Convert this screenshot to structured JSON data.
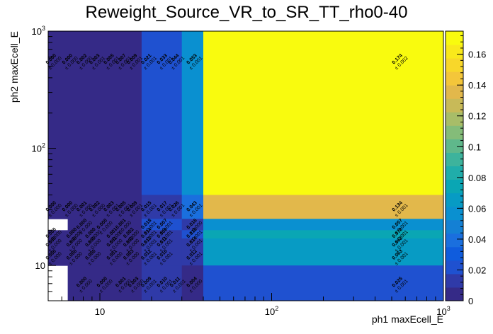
{
  "chart_data": {
    "type": "heatmap",
    "title": "Reweight_Source_VR_to_SR_TT_rho0-40",
    "xlabel": "ph1 maxEcell_E",
    "ylabel": "ph2 maxEcell_E",
    "x_scale": "log",
    "y_scale": "log",
    "xlim": [
      5,
      1000
    ],
    "ylim": [
      5,
      1000
    ],
    "x_ticks": [
      {
        "value": 10,
        "base": "10",
        "exp": ""
      },
      {
        "value": 100,
        "base": "10",
        "exp": "2"
      },
      {
        "value": 1000,
        "base": "10",
        "exp": "3"
      }
    ],
    "y_ticks": [
      {
        "value": 10,
        "base": "10",
        "exp": ""
      },
      {
        "value": 100,
        "base": "10",
        "exp": "2"
      },
      {
        "value": 1000,
        "base": "10",
        "exp": "3"
      }
    ],
    "colorbar": {
      "range": [
        0,
        0.175
      ],
      "ticks": [
        "0",
        "0.02",
        "0.04",
        "0.06",
        "0.08",
        "0.1",
        "0.12",
        "0.14",
        "0.16"
      ],
      "tick_values": [
        0,
        0.02,
        0.04,
        0.06,
        0.08,
        0.1,
        0.12,
        0.14,
        0.16
      ],
      "palette": [
        "#352a87",
        "#2f3aa8",
        "#1f51d0",
        "#0f5cdd",
        "#1a6fde",
        "#1480d4",
        "#0a90d0",
        "#079bc4",
        "#0aa6b4",
        "#20adaa",
        "#3db39c",
        "#5fb88b",
        "#84bc79",
        "#a8bd68",
        "#c8ba58",
        "#e2b84b",
        "#f4c63a",
        "#f8d72a",
        "#f9e91b",
        "#f9fb0e"
      ]
    },
    "cells": [
      {
        "x": [
          5,
          17.5
        ],
        "y": [
          40,
          1000
        ],
        "value": 0.0
      },
      {
        "x": [
          17.5,
          30
        ],
        "y": [
          40,
          1000
        ],
        "value": 0.021
      },
      {
        "x": [
          30,
          40
        ],
        "y": [
          40,
          1000
        ],
        "value": 0.053
      },
      {
        "x": [
          40,
          1000
        ],
        "y": [
          40,
          1000
        ],
        "value": 0.174
      },
      {
        "x": [
          5,
          17.5
        ],
        "y": [
          25,
          40
        ],
        "value": 0.0
      },
      {
        "x": [
          17.5,
          30
        ],
        "y": [
          25,
          40
        ],
        "value": 0.017
      },
      {
        "x": [
          30,
          40
        ],
        "y": [
          25,
          40
        ],
        "value": 0.043
      },
      {
        "x": [
          40,
          1000
        ],
        "y": [
          25,
          40
        ],
        "value": 0.134
      },
      {
        "x": [
          5,
          6.5
        ],
        "y": [
          20,
          25
        ],
        "value": null
      },
      {
        "x": [
          6.5,
          17.5
        ],
        "y": [
          20,
          25
        ],
        "value": 0.0
      },
      {
        "x": [
          17.5,
          30
        ],
        "y": [
          20,
          25
        ],
        "value": 0.018
      },
      {
        "x": [
          30,
          40
        ],
        "y": [
          20,
          25
        ],
        "value": 0.016
      },
      {
        "x": [
          40,
          1000
        ],
        "y": [
          20,
          25
        ],
        "value": 0.057
      },
      {
        "x": [
          5,
          17.5
        ],
        "y": [
          17,
          20
        ],
        "value": 0.0
      },
      {
        "x": [
          17.5,
          30
        ],
        "y": [
          17,
          20
        ],
        "value": 0.014
      },
      {
        "x": [
          30,
          40
        ],
        "y": [
          17,
          20
        ],
        "value": 0.018
      },
      {
        "x": [
          40,
          1000
        ],
        "y": [
          17,
          20
        ],
        "value": 0.078
      },
      {
        "x": [
          5,
          17.5
        ],
        "y": [
          14,
          17
        ],
        "value": 0.0
      },
      {
        "x": [
          17.5,
          30
        ],
        "y": [
          14,
          17
        ],
        "value": 0.013
      },
      {
        "x": [
          30,
          40
        ],
        "y": [
          14,
          17
        ],
        "value": 0.014
      },
      {
        "x": [
          40,
          1000
        ],
        "y": [
          14,
          17
        ],
        "value": 0.063
      },
      {
        "x": [
          5,
          17.5
        ],
        "y": [
          10,
          14
        ],
        "value": 0.0
      },
      {
        "x": [
          17.5,
          30
        ],
        "y": [
          10,
          14
        ],
        "value": 0.012
      },
      {
        "x": [
          30,
          40
        ],
        "y": [
          10,
          14
        ],
        "value": 0.012
      },
      {
        "x": [
          40,
          1000
        ],
        "y": [
          10,
          14
        ],
        "value": 0.063
      },
      {
        "x": [
          5,
          6.5
        ],
        "y": [
          5,
          10
        ],
        "value": null
      },
      {
        "x": [
          6.5,
          17.5
        ],
        "y": [
          5,
          10
        ],
        "value": 0.0
      },
      {
        "x": [
          17.5,
          30
        ],
        "y": [
          5,
          10
        ],
        "value": 0.009
      },
      {
        "x": [
          30,
          40
        ],
        "y": [
          5,
          10
        ],
        "value": 0.004
      },
      {
        "x": [
          40,
          1000
        ],
        "y": [
          5,
          10
        ],
        "value": 0.025
      }
    ],
    "labels": [
      {
        "x": 5.3,
        "y": 560,
        "value": "0.000",
        "error": "± 0.000"
      },
      {
        "x": 6.6,
        "y": 560,
        "value": "0.000",
        "error": "± 0.000"
      },
      {
        "x": 8.0,
        "y": 560,
        "value": "0.002",
        "error": "± 0.000"
      },
      {
        "x": 9.5,
        "y": 560,
        "value": "0.003",
        "error": "± 0.001"
      },
      {
        "x": 11.5,
        "y": 560,
        "value": "0.005",
        "error": "± 0.001"
      },
      {
        "x": 13.5,
        "y": 560,
        "value": "0.007",
        "error": "± 0.001"
      },
      {
        "x": 15.7,
        "y": 560,
        "value": "0.009",
        "error": "± 0.001"
      },
      {
        "x": 19.0,
        "y": 560,
        "value": "0.021",
        "error": "± 0.001"
      },
      {
        "x": 23.5,
        "y": 560,
        "value": "0.033",
        "error": "± 0.001"
      },
      {
        "x": 27.5,
        "y": 560,
        "value": "0.044",
        "error": "± 0.001"
      },
      {
        "x": 35.0,
        "y": 560,
        "value": "0.053",
        "error": "± 0.001"
      },
      {
        "x": 550,
        "y": 560,
        "value": "0.174",
        "error": "± 0.002"
      },
      {
        "x": 5.3,
        "y": 31,
        "value": "0.000",
        "error": "± 0.000"
      },
      {
        "x": 6.6,
        "y": 31,
        "value": "0.000",
        "error": "± 0.000"
      },
      {
        "x": 8.0,
        "y": 31,
        "value": "0.001",
        "error": "± 0.000"
      },
      {
        "x": 9.5,
        "y": 31,
        "value": "0.002",
        "error": "± 0.000"
      },
      {
        "x": 11.5,
        "y": 31,
        "value": "0.003",
        "error": "± 0.001"
      },
      {
        "x": 13.5,
        "y": 31,
        "value": "0.005",
        "error": "± 0.001"
      },
      {
        "x": 15.7,
        "y": 31,
        "value": "0.009",
        "error": "± 0.001"
      },
      {
        "x": 19.0,
        "y": 31,
        "value": "0.015",
        "error": "± 0.001"
      },
      {
        "x": 23.5,
        "y": 31,
        "value": "0.017",
        "error": "± 0.001"
      },
      {
        "x": 27.5,
        "y": 31,
        "value": "0.026",
        "error": "± 0.001"
      },
      {
        "x": 35.0,
        "y": 31,
        "value": "0.043",
        "error": "± 0.001"
      },
      {
        "x": 550,
        "y": 31,
        "value": "0.134",
        "error": "± 0.001"
      },
      {
        "x": 8.0,
        "y": 22,
        "value": "0.000",
        "error": "± 0.000"
      },
      {
        "x": 10.5,
        "y": 22,
        "value": "0.000",
        "error": "± 0.000"
      },
      {
        "x": 13.5,
        "y": 22,
        "value": "0.001",
        "error": "± 0.000"
      },
      {
        "x": 19.0,
        "y": 22,
        "value": "0.018",
        "error": "± 0.001"
      },
      {
        "x": 23.5,
        "y": 22,
        "value": "0.007",
        "error": "± 0.001"
      },
      {
        "x": 35.0,
        "y": 22,
        "value": "0.016",
        "error": "± 0.000"
      },
      {
        "x": 550,
        "y": 22,
        "value": "0.057",
        "error": "± 0.001"
      },
      {
        "x": 5.3,
        "y": 18.4,
        "value": "0.000",
        "error": "± 0.000"
      },
      {
        "x": 7.0,
        "y": 18.4,
        "value": "0.000",
        "error": "± 0.000"
      },
      {
        "x": 9.0,
        "y": 18.4,
        "value": "0.000",
        "error": "± 0.000"
      },
      {
        "x": 12.0,
        "y": 18.4,
        "value": "0.001",
        "error": "± 0.000"
      },
      {
        "x": 15.0,
        "y": 18.4,
        "value": "0.002",
        "error": "± 0.000"
      },
      {
        "x": 19.0,
        "y": 18.4,
        "value": "0.014",
        "error": "± 0.001"
      },
      {
        "x": 23.5,
        "y": 18.4,
        "value": "0.009",
        "error": "± 0.001"
      },
      {
        "x": 35.0,
        "y": 18.4,
        "value": "0.018",
        "error": "± 0.001"
      },
      {
        "x": 550,
        "y": 18.4,
        "value": "0.078",
        "error": "± 0.001"
      },
      {
        "x": 5.3,
        "y": 15.5,
        "value": "0.000",
        "error": "± 0.000"
      },
      {
        "x": 7.0,
        "y": 15.5,
        "value": "0.000",
        "error": "± 0.000"
      },
      {
        "x": 9.0,
        "y": 15.5,
        "value": "0.000",
        "error": "± 0.000"
      },
      {
        "x": 12.0,
        "y": 15.5,
        "value": "0.001",
        "error": "± 0.000"
      },
      {
        "x": 15.0,
        "y": 15.5,
        "value": "0.003",
        "error": "± 0.000"
      },
      {
        "x": 19.0,
        "y": 15.5,
        "value": "0.013",
        "error": "± 0.001"
      },
      {
        "x": 23.5,
        "y": 15.5,
        "value": "0.011",
        "error": "± 0.001"
      },
      {
        "x": 35.0,
        "y": 15.5,
        "value": "0.014",
        "error": "± 0.001"
      },
      {
        "x": 550,
        "y": 15.5,
        "value": "0.063",
        "error": "± 0.001"
      },
      {
        "x": 5.3,
        "y": 12.0,
        "value": "0.000",
        "error": "± 0.000"
      },
      {
        "x": 7.0,
        "y": 12.0,
        "value": "0.000",
        "error": "± 0.000"
      },
      {
        "x": 9.0,
        "y": 12.0,
        "value": "0.000",
        "error": "± 0.000"
      },
      {
        "x": 12.0,
        "y": 12.0,
        "value": "0.001",
        "error": "± 0.000"
      },
      {
        "x": 15.0,
        "y": 12.0,
        "value": "0.003",
        "error": "± 0.000"
      },
      {
        "x": 19.0,
        "y": 12.0,
        "value": "0.012",
        "error": "± 0.001"
      },
      {
        "x": 23.5,
        "y": 12.0,
        "value": "0.010",
        "error": "± 0.001"
      },
      {
        "x": 35.0,
        "y": 12.0,
        "value": "0.012",
        "error": "± 0.001"
      },
      {
        "x": 550,
        "y": 12.0,
        "value": "0.063",
        "error": "± 0.001"
      },
      {
        "x": 8.0,
        "y": 7.0,
        "value": "0.000",
        "error": "± 0.000"
      },
      {
        "x": 10.5,
        "y": 7.0,
        "value": "0.000",
        "error": "± 0.000"
      },
      {
        "x": 13.5,
        "y": 7.0,
        "value": "0.001",
        "error": "± 0.000"
      },
      {
        "x": 16.0,
        "y": 7.0,
        "value": "0.003",
        "error": "± 0.000"
      },
      {
        "x": 19.0,
        "y": 7.0,
        "value": "0.009",
        "error": "± 0.001"
      },
      {
        "x": 23.5,
        "y": 7.0,
        "value": "0.010",
        "error": "± 0.001"
      },
      {
        "x": 28.0,
        "y": 7.0,
        "value": "0.011",
        "error": "± 0.001"
      },
      {
        "x": 35.0,
        "y": 7.0,
        "value": "0.004",
        "error": "± 0.000"
      },
      {
        "x": 550,
        "y": 7.0,
        "value": "0.025",
        "error": "± 0.001"
      }
    ]
  }
}
